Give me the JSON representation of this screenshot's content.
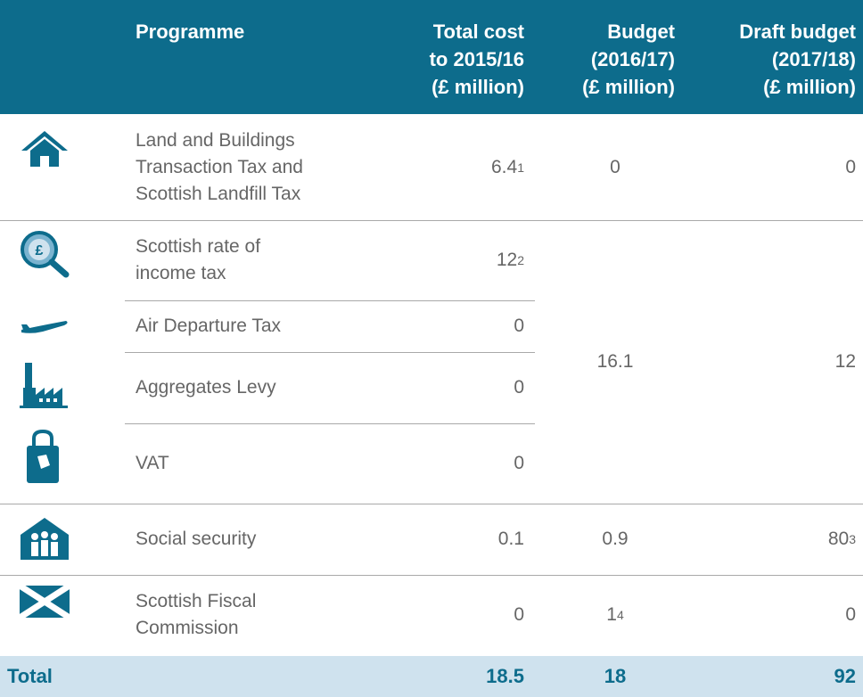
{
  "table": {
    "header": [
      "Programme",
      "Total cost\nto 2015/16\n(£ million)",
      "Budget\n(2016/17)\n(£ million)",
      "Draft budget\n(2017/18)\n(£ million)"
    ],
    "rows": [
      {
        "programme": "Land and Buildings\nTransaction Tax and\nScottish Landfill Tax",
        "total": "6.4",
        "total_note": "1",
        "budget": "0",
        "draft": "0"
      },
      {
        "programme": "Scottish rate of\nincome tax",
        "total": "12",
        "total_note": "2",
        "budget": "16.1",
        "draft": "12"
      },
      {
        "programme": "Air Departure Tax",
        "total": "0"
      },
      {
        "programme": "Aggregates Levy",
        "total": "0"
      },
      {
        "programme": "VAT",
        "total": "0"
      },
      {
        "programme": "Social security",
        "total": "0.1",
        "budget": "0.9",
        "draft": "80",
        "draft_note": "3"
      },
      {
        "programme": "Scottish Fiscal\nCommission",
        "total": "0",
        "budget": "1",
        "budget_note": "4",
        "draft": "0"
      }
    ],
    "total": {
      "label": "Total",
      "total": "18.5",
      "budget": "18",
      "draft": "92"
    }
  }
}
